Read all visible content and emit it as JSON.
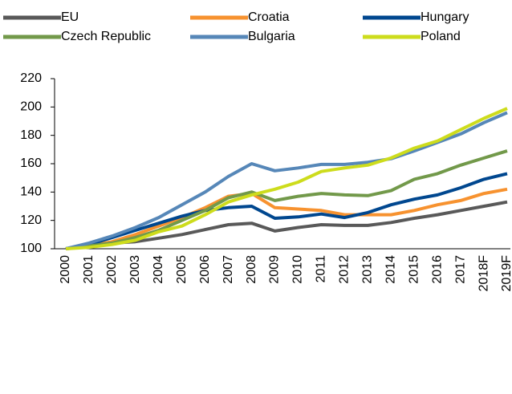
{
  "chart_data": {
    "type": "line",
    "categories": [
      "2000",
      "2001",
      "2002",
      "2003",
      "2004",
      "2005",
      "2006",
      "2007",
      "2008",
      "2009",
      "2010",
      "2011",
      "2012",
      "2013",
      "2014",
      "2015",
      "2016",
      "2017",
      "2018F",
      "2019F"
    ],
    "series": [
      {
        "name": "EU",
        "color": "#595959",
        "values": [
          100,
          102,
          104,
          105,
          107.5,
          110,
          113.5,
          117,
          118,
          112.5,
          115,
          117,
          116.5,
          116.5,
          118.5,
          121.5,
          124,
          127,
          130,
          133
        ]
      },
      {
        "name": "Croatia",
        "color": "#f7922f",
        "values": [
          100,
          102,
          105,
          110,
          116,
          122,
          129,
          137,
          139,
          129,
          128,
          127,
          124,
          124,
          124,
          127,
          131,
          134,
          139,
          142
        ]
      },
      {
        "name": "Hungary",
        "color": "#00478f",
        "values": [
          100,
          103,
          108,
          113,
          118,
          123,
          127,
          129,
          130,
          121.5,
          122.5,
          124.5,
          122,
          125.5,
          131,
          135,
          138,
          143,
          149,
          153
        ]
      },
      {
        "name": "Czech Republic",
        "color": "#72994a",
        "values": [
          100,
          102,
          104,
          108,
          113,
          120,
          127,
          136,
          140,
          134,
          137,
          139,
          138,
          137.5,
          141,
          149,
          153,
          159,
          164,
          169
        ]
      },
      {
        "name": "Bulgaria",
        "color": "#5687b8",
        "values": [
          100,
          104,
          109,
          115,
          122,
          131,
          140,
          151,
          160,
          155,
          157,
          159.5,
          159.5,
          161,
          163.5,
          169,
          175,
          181,
          189,
          196
        ]
      },
      {
        "name": "Poland",
        "color": "#cddc1c",
        "values": [
          100,
          101,
          103,
          106,
          112,
          116,
          124,
          133,
          138,
          142,
          147,
          154.5,
          157,
          159,
          164,
          171,
          176,
          184,
          192,
          199
        ]
      }
    ],
    "ylim": [
      100,
      220
    ],
    "yticks": [
      100,
      120,
      140,
      160,
      180,
      200,
      220
    ]
  }
}
